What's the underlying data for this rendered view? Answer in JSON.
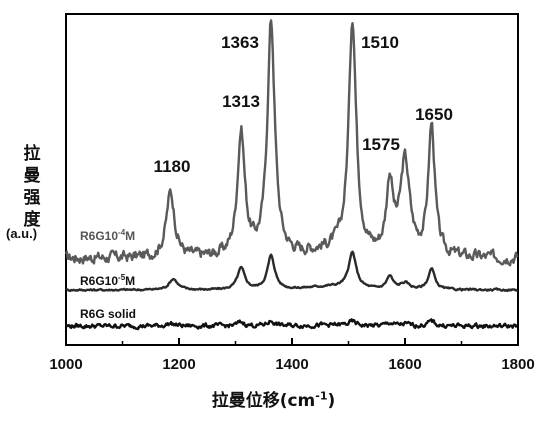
{
  "chart_data": {
    "type": "line",
    "title": "",
    "xlabel": "拉曼位移",
    "xlabel_unit": "(cm",
    "xlabel_unit_sup": "-1",
    "xlabel_unit_close": ")",
    "ylabel": "拉曼强度",
    "ylabel_unit": "(a.u.)",
    "xlim": [
      1000,
      1800
    ],
    "xticks": [
      1000,
      1200,
      1400,
      1600,
      1800
    ],
    "xtick_labels": [
      "1000",
      "1200",
      "1400",
      "1600",
      "1800"
    ],
    "grid": false,
    "legend": "inline labels at left of each trace",
    "peak_labels": [
      "1180",
      "1313",
      "1363",
      "1510",
      "1575",
      "1650"
    ],
    "peaks": [
      1180,
      1313,
      1363,
      1510,
      1575,
      1650
    ],
    "series": [
      {
        "name": "R6G10⁻⁴M",
        "label_main": "R6G10",
        "label_sup": "-4",
        "label_tail": "M",
        "color": "#5a5a5a",
        "baseline": 0.62,
        "noise": 0.035,
        "heights": [
          0.5,
          0.95,
          1.8,
          1.8,
          0.55,
          0.72,
          1.0
        ],
        "widths": [
          9,
          8,
          8,
          8,
          7,
          10,
          7
        ],
        "centers": [
          1185,
          1310,
          1363,
          1507,
          1573,
          1600,
          1647
        ]
      },
      {
        "name": "R6G10⁻⁵M",
        "label_main": "R6G10",
        "label_sup": "-5",
        "label_tail": "M",
        "color": "#2a2a2a",
        "baseline": 0.22,
        "noise": 0.012,
        "heights": [
          0.17,
          0.33,
          0.52,
          0.54,
          0.2,
          0.1,
          0.32
        ],
        "widths": [
          9,
          8,
          8,
          8,
          7,
          10,
          7
        ],
        "centers": [
          1190,
          1310,
          1363,
          1507,
          1573,
          1600,
          1647
        ]
      },
      {
        "name": "R6G solid",
        "label_main": "R6G solid",
        "label_sup": "",
        "label_tail": "",
        "color": "#111111",
        "baseline": 0.0,
        "noise": 0.03,
        "heights": [
          0.04,
          0.06,
          0.08,
          0.06,
          0.05,
          0.03,
          0.08
        ],
        "widths": [
          9,
          8,
          8,
          8,
          7,
          10,
          7
        ],
        "centers": [
          1185,
          1310,
          1363,
          1507,
          1573,
          1600,
          1647
        ]
      }
    ]
  }
}
